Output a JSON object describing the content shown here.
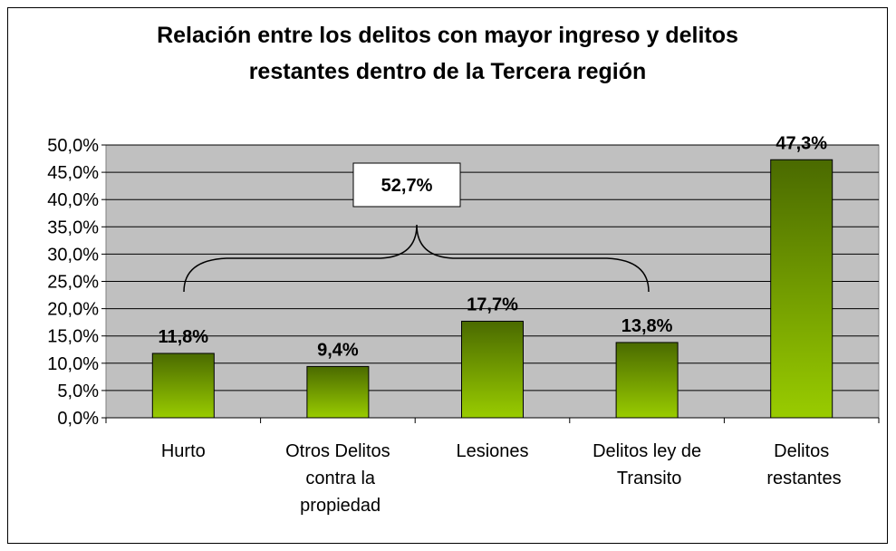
{
  "chart_data": {
    "type": "bar",
    "title": [
      "Relación entre los delitos con mayor ingreso y delitos",
      "restantes dentro de la Tercera región"
    ],
    "categories": [
      "Hurto",
      "Otros Delitos contra la propiedad",
      "Lesiones",
      "Delitos ley de Transito",
      "Delitos restantes"
    ],
    "values": [
      11.8,
      9.4,
      17.7,
      13.8,
      47.3
    ],
    "value_labels": [
      "11,8%",
      "9,4%",
      "17,7%",
      "13,8%",
      "47,3%"
    ],
    "color": [
      "#4a6a00",
      "#99cc00"
    ],
    "ylim": [
      0,
      50
    ],
    "yticks": [
      {
        "value": 0,
        "label": "0,0%"
      },
      {
        "value": 5,
        "label": "5,0%"
      },
      {
        "value": 10,
        "label": "10,0%"
      },
      {
        "value": 15,
        "label": "15,0%"
      },
      {
        "value": 20,
        "label": "20,0%"
      },
      {
        "value": 25,
        "label": "25,0%"
      },
      {
        "value": 30,
        "label": "30,0%"
      },
      {
        "value": 35,
        "label": "35,0%"
      },
      {
        "value": 40,
        "label": "40,0%"
      },
      {
        "value": 45,
        "label": "45,0%"
      },
      {
        "value": 50,
        "label": "50,0%"
      }
    ],
    "grid": true,
    "annotation": "52,7%"
  }
}
